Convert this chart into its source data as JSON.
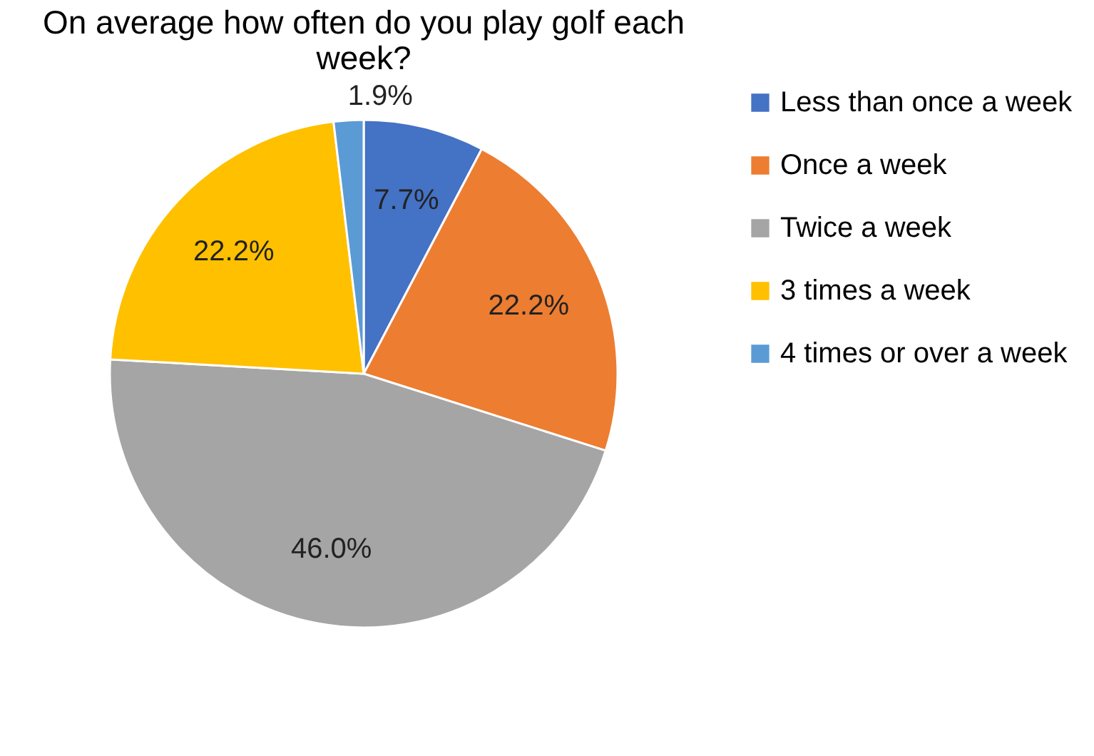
{
  "chart_data": {
    "type": "pie",
    "title": "On average how often do you play golf each week?",
    "categories": [
      "Less than once a week",
      "Once a week",
      "Twice a week",
      "3 times a week",
      "4 times or over a week"
    ],
    "values": [
      7.7,
      22.2,
      46.0,
      22.2,
      1.9
    ],
    "colors": [
      "#4472c4",
      "#ed7d31",
      "#a5a5a5",
      "#ffc000",
      "#5b9bd5"
    ],
    "value_labels": [
      "7.7%",
      "22.2%",
      "46.0%",
      "22.2%",
      "1.9%"
    ],
    "legend": "right"
  }
}
